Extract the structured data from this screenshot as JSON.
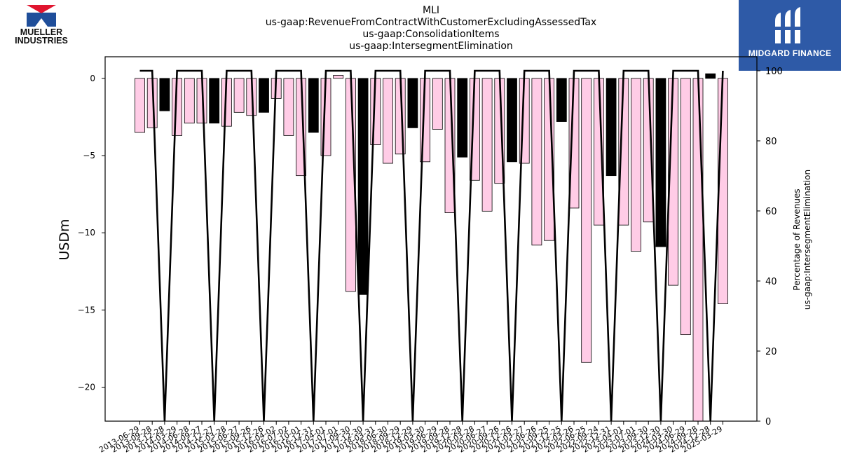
{
  "header": {
    "title_lines": [
      "MLI",
      "us-gaap:RevenueFromContractWithCustomerExcludingAssessedTax",
      "us-gaap:ConsolidationItems",
      "us-gaap:IntersegmentElimination"
    ]
  },
  "logos": {
    "left": {
      "line1": "MUELLER",
      "line2": "INDUSTRIES",
      "colors": {
        "red": "#e0152f",
        "blue": "#1f4e9a"
      }
    },
    "right": {
      "text": "MIDGARD FINANCE",
      "background": "#2e5aa7"
    }
  },
  "chart_data": {
    "type": "bar",
    "categories": [
      "2013-06-29",
      "2013-09-28",
      "2013-12-28",
      "2014-03-29",
      "2014-06-28",
      "2014-09-27",
      "2014-12-27",
      "2015-03-28",
      "2015-06-27",
      "2015-09-26",
      "2015-12-26",
      "2016-04-02",
      "2016-07-02",
      "2016-10-01",
      "2016-12-31",
      "2017-04-01",
      "2017-07-01",
      "2017-09-30",
      "2017-12-30",
      "2018-03-31",
      "2018-06-30",
      "2018-09-29",
      "2018-12-29",
      "2019-03-30",
      "2019-06-29",
      "2019-09-28",
      "2019-12-28",
      "2020-03-28",
      "2020-06-27",
      "2020-09-26",
      "2020-12-26",
      "2021-03-27",
      "2021-06-26",
      "2021-09-25",
      "2021-12-25",
      "2022-03-26",
      "2022-06-25",
      "2022-09-24",
      "2022-12-31",
      "2023-04-01",
      "2023-07-01",
      "2023-09-30",
      "2023-12-30",
      "2024-03-30",
      "2024-06-29",
      "2024-09-28",
      "2024-12-28",
      "2025-03-29"
    ],
    "values": [
      -3.5,
      -3.2,
      -2.1,
      -3.7,
      -2.9,
      -2.9,
      -2.9,
      -3.1,
      -2.2,
      -2.4,
      -2.2,
      -1.3,
      -3.7,
      -6.3,
      -3.5,
      -5.0,
      0.2,
      -13.8,
      -14.0,
      -4.3,
      -5.5,
      -4.9,
      -3.2,
      -5.4,
      -3.3,
      -8.7,
      -5.1,
      -6.6,
      -8.6,
      -6.8,
      -5.4,
      -5.5,
      -10.8,
      -10.5,
      -2.8,
      -8.4,
      -18.4,
      -9.5,
      -6.3,
      -9.5,
      -11.2,
      -9.3,
      -10.9,
      -13.4,
      -16.6,
      -22.2,
      0.3,
      -14.6
    ],
    "bar_colors": [
      "pink",
      "pink",
      "black",
      "pink",
      "pink",
      "pink",
      "black",
      "pink",
      "pink",
      "pink",
      "black",
      "pink",
      "pink",
      "pink",
      "black",
      "pink",
      "pink",
      "pink",
      "black",
      "pink",
      "pink",
      "pink",
      "black",
      "pink",
      "pink",
      "pink",
      "black",
      "pink",
      "pink",
      "pink",
      "black",
      "pink",
      "pink",
      "pink",
      "black",
      "pink",
      "pink",
      "pink",
      "black",
      "pink",
      "pink",
      "pink",
      "black",
      "pink",
      "pink",
      "pink",
      "black",
      "pink"
    ],
    "percentage_line": [
      100,
      100,
      0,
      100,
      100,
      100,
      0,
      100,
      100,
      100,
      0,
      100,
      100,
      100,
      0,
      100,
      100,
      100,
      0,
      100,
      100,
      100,
      0,
      100,
      100,
      100,
      0,
      100,
      100,
      100,
      0,
      100,
      100,
      100,
      0,
      100,
      100,
      100,
      0,
      100,
      100,
      100,
      0,
      100,
      100,
      100,
      0,
      100
    ],
    "ylabel": "USDm",
    "ylabel_right_lines": [
      "Percentage of Revenues",
      "us-gaap:IntersegmentElimination"
    ],
    "ylim": [
      -22.2,
      1.4
    ],
    "ylim_right": [
      0,
      104
    ],
    "yticks": [
      0,
      -5,
      -10,
      -15,
      -20
    ],
    "yticks_right": [
      0,
      20,
      40,
      60,
      80,
      100
    ],
    "colors": {
      "pink": "#ffcce6",
      "black": "#000000",
      "line": "#000000"
    },
    "grid": false,
    "legend": "none"
  }
}
